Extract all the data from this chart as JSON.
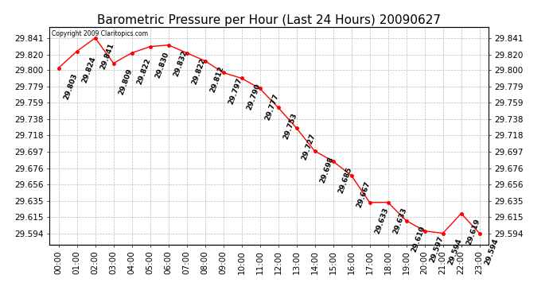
{
  "title": "Barometric Pressure per Hour (Last 24 Hours) 20090627",
  "copyright": "Copyright 2009 Claritopics.com",
  "hours": [
    "00:00",
    "01:00",
    "02:00",
    "03:00",
    "04:00",
    "05:00",
    "06:00",
    "07:00",
    "08:00",
    "09:00",
    "10:00",
    "11:00",
    "12:00",
    "13:00",
    "14:00",
    "15:00",
    "16:00",
    "17:00",
    "18:00",
    "19:00",
    "20:00",
    "21:00",
    "22:00",
    "23:00"
  ],
  "values": [
    29.803,
    29.824,
    29.841,
    29.809,
    29.822,
    29.83,
    29.832,
    29.822,
    29.812,
    29.797,
    29.79,
    29.777,
    29.753,
    29.727,
    29.698,
    29.685,
    29.667,
    29.633,
    29.633,
    29.61,
    29.597,
    29.594,
    29.619,
    29.594
  ],
  "ylim_min": 29.58,
  "ylim_max": 29.855,
  "yticks": [
    29.841,
    29.82,
    29.8,
    29.779,
    29.759,
    29.738,
    29.718,
    29.697,
    29.676,
    29.656,
    29.635,
    29.615,
    29.594
  ],
  "line_color": "red",
  "marker_color": "red",
  "bg_color": "white",
  "grid_color": "#bbbbbb",
  "title_fontsize": 11,
  "tick_fontsize": 7.5,
  "annotation_fontsize": 6.5
}
